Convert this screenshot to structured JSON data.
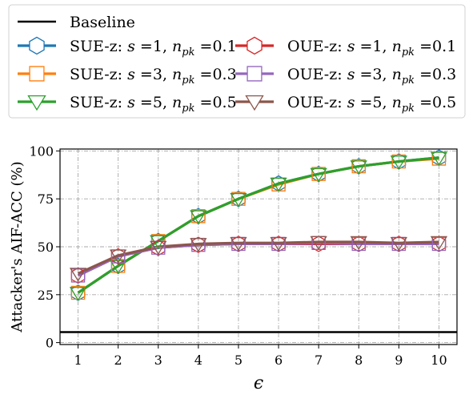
{
  "chart_data": {
    "type": "line",
    "title": "",
    "xlabel": "ϵ",
    "ylabel": "Attacker's AIF-ACC (%)",
    "x": [
      1,
      2,
      3,
      4,
      5,
      6,
      7,
      8,
      9,
      10
    ],
    "xlim": [
      0.55,
      10.45
    ],
    "ylim": [
      -1,
      101
    ],
    "xticks": [
      "1",
      "2",
      "3",
      "4",
      "5",
      "6",
      "7",
      "8",
      "9",
      "10"
    ],
    "yticks": [
      "0",
      "25",
      "50",
      "75",
      "100"
    ],
    "grid": true,
    "grid_style": "dash-dot",
    "legend_position": "top",
    "baseline": {
      "name": "Baseline",
      "value": 5.5,
      "color": "#000000"
    },
    "series": [
      {
        "name_prefix": "SUE-z:",
        "s": "1",
        "npk": "0.1",
        "color": "#1f77b4",
        "marker": "hexagon",
        "values": [
          26,
          40,
          53,
          66,
          75,
          83,
          88,
          92,
          94.5,
          96.5
        ]
      },
      {
        "name_prefix": "SUE-z:",
        "s": "3",
        "npk": "0.3",
        "color": "#ff7f0e",
        "marker": "square",
        "values": [
          26,
          40,
          53,
          66,
          75,
          82.5,
          88,
          92,
          94.5,
          96
        ]
      },
      {
        "name_prefix": "SUE-z:",
        "s": "5",
        "npk": "0.5",
        "color": "#2ca02c",
        "marker": "triangle_down",
        "values": [
          26,
          40,
          53,
          66,
          75,
          83,
          88,
          92,
          94.5,
          96.5
        ]
      },
      {
        "name_prefix": "OUE-z:",
        "s": "1",
        "npk": "0.1",
        "color": "#d62728",
        "marker": "hexagon",
        "values": [
          35,
          45,
          49.5,
          51,
          51.5,
          51.5,
          51.5,
          51.5,
          51.5,
          51.5
        ]
      },
      {
        "name_prefix": "OUE-z:",
        "s": "3",
        "npk": "0.3",
        "color": "#9467bd",
        "marker": "square",
        "values": [
          35,
          45,
          49.5,
          51,
          51.5,
          51.5,
          52,
          51.5,
          51.5,
          51.5
        ]
      },
      {
        "name_prefix": "OUE-z:",
        "s": "5",
        "npk": "0.5",
        "color": "#8c564b",
        "marker": "triangle_down",
        "values": [
          36,
          45.5,
          50,
          51.5,
          52,
          52,
          52.5,
          52.5,
          52,
          52.5
        ]
      }
    ]
  }
}
